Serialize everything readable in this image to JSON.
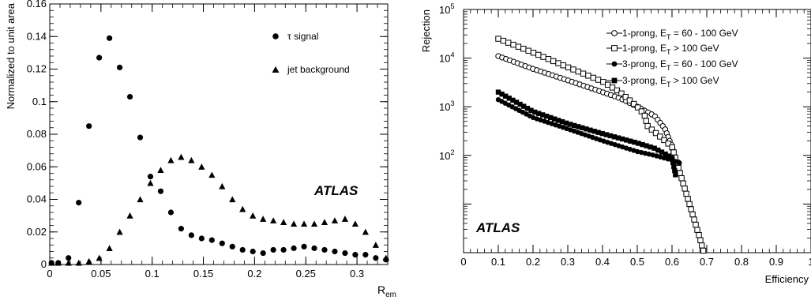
{
  "chart_data": [
    {
      "type": "scatter",
      "xlabel_main": "R",
      "xlabel_sub": "em",
      "ylabel": "Normalized to unit area",
      "xlim": [
        0,
        0.33
      ],
      "ylim": [
        0,
        0.16
      ],
      "xticks": [
        0,
        0.05,
        0.1,
        0.15,
        0.2,
        0.25,
        0.3
      ],
      "xtick_labels": [
        "0",
        "0.05",
        "0.1",
        "0.15",
        "0.2",
        "0.25",
        "0.3"
      ],
      "yticks": [
        0,
        0.02,
        0.04,
        0.06,
        0.08,
        0.1,
        0.12,
        0.14,
        0.16
      ],
      "ytick_labels": [
        "0",
        "0.02",
        "0.04",
        "0.06",
        "0.08",
        "0.1",
        "0.12",
        "0.14",
        "0.16"
      ],
      "watermark": "ATLAS",
      "series": [
        {
          "name": "τ signal",
          "marker": "circle",
          "x": [
            0.0017,
            0.0083,
            0.0183,
            0.0283,
            0.0383,
            0.0483,
            0.0583,
            0.0683,
            0.0783,
            0.0883,
            0.0983,
            0.1083,
            0.1183,
            0.1283,
            0.1383,
            0.1483,
            0.1583,
            0.1683,
            0.1783,
            0.1883,
            0.1983,
            0.2083,
            0.2183,
            0.2283,
            0.2383,
            0.2483,
            0.2583,
            0.2683,
            0.2783,
            0.2883,
            0.2983,
            0.3083,
            0.3183,
            0.3283
          ],
          "y": [
            0.001,
            0.001,
            0.004,
            0.038,
            0.085,
            0.127,
            0.139,
            0.121,
            0.103,
            0.078,
            0.054,
            0.045,
            0.032,
            0.022,
            0.018,
            0.016,
            0.015,
            0.013,
            0.011,
            0.009,
            0.008,
            0.007,
            0.009,
            0.009,
            0.01,
            0.011,
            0.01,
            0.009,
            0.008,
            0.007,
            0.006,
            0.006,
            0.004,
            0.003
          ]
        },
        {
          "name": "jet background",
          "marker": "triangle",
          "x": [
            0.0017,
            0.0083,
            0.0183,
            0.0283,
            0.0383,
            0.0483,
            0.0583,
            0.0683,
            0.0783,
            0.0883,
            0.0983,
            0.1083,
            0.1183,
            0.1283,
            0.1383,
            0.1483,
            0.1583,
            0.1683,
            0.1783,
            0.1883,
            0.1983,
            0.2083,
            0.2183,
            0.2283,
            0.2383,
            0.2483,
            0.2583,
            0.2683,
            0.2783,
            0.2883,
            0.2983,
            0.3083,
            0.3183,
            0.3283
          ],
          "y": [
            0.001,
            0.001,
            0.001,
            0.001,
            0.002,
            0.004,
            0.01,
            0.02,
            0.03,
            0.04,
            0.05,
            0.058,
            0.064,
            0.066,
            0.064,
            0.06,
            0.055,
            0.048,
            0.04,
            0.034,
            0.03,
            0.028,
            0.027,
            0.026,
            0.025,
            0.025,
            0.025,
            0.026,
            0.027,
            0.028,
            0.025,
            0.02,
            0.012,
            0.004
          ]
        }
      ]
    },
    {
      "type": "line",
      "xlabel": "Efficiency",
      "ylabel": "Rejection",
      "yscale": "log",
      "xlim": [
        0,
        1
      ],
      "ylim": [
        1,
        100000
      ],
      "xticks": [
        0,
        0.1,
        0.2,
        0.3,
        0.4,
        0.5,
        0.6,
        0.7,
        0.8,
        0.9,
        1
      ],
      "xtick_labels": [
        "0",
        "0.1",
        "0.2",
        "0.3",
        "0.4",
        "0.5",
        "0.6",
        "0.7",
        "0.8",
        "0.9",
        "1"
      ],
      "ytick_labels": [
        {
          "base": "10",
          "exp": "2",
          "value": 100
        },
        {
          "base": "10",
          "exp": "3",
          "value": 1000
        },
        {
          "base": "10",
          "exp": "4",
          "value": 10000
        },
        {
          "base": "10",
          "exp": "5",
          "value": 100000
        }
      ],
      "watermark": "ATLAS",
      "series": [
        {
          "name": "1-prong, E_T = 60 - 100 GeV",
          "legend_pre": "1-prong, E",
          "legend_sub": "T",
          "legend_post": " = 60 - 100 GeV",
          "marker": "open-circle",
          "x": [
            0.1,
            0.2,
            0.3,
            0.4,
            0.45,
            0.5,
            0.55,
            0.58,
            0.6,
            0.61,
            0.62
          ],
          "y": [
            11000,
            6000,
            3500,
            2000,
            1500,
            1000,
            650,
            350,
            150,
            80,
            70
          ]
        },
        {
          "name": "1-prong, E_T > 100 GeV",
          "legend_pre": "1-prong, E",
          "legend_sub": "T",
          "legend_post": " > 100 GeV",
          "marker": "open-square",
          "x": [
            0.1,
            0.2,
            0.3,
            0.4,
            0.45,
            0.5,
            0.52,
            0.53,
            0.6,
            0.68,
            0.69
          ],
          "y": [
            25000,
            13000,
            6500,
            3300,
            2000,
            1000,
            700,
            400,
            150,
            2,
            1.1
          ]
        },
        {
          "name": "3-prong, E_T = 60 - 100 GeV",
          "legend_pre": "3-prong, E",
          "legend_sub": "T",
          "legend_post": " = 60 - 100 GeV",
          "marker": "filled-circle",
          "x": [
            0.1,
            0.2,
            0.3,
            0.4,
            0.5,
            0.55,
            0.6,
            0.62
          ],
          "y": [
            1400,
            600,
            350,
            200,
            120,
            100,
            80,
            70
          ]
        },
        {
          "name": "3-prong, E_T > 100 GeV",
          "legend_pre": "3-prong, E",
          "legend_sub": "T",
          "legend_post": " > 100 GeV",
          "marker": "filled-square",
          "x": [
            0.1,
            0.2,
            0.3,
            0.4,
            0.5,
            0.55,
            0.6,
            0.61
          ],
          "y": [
            2000,
            800,
            450,
            280,
            180,
            140,
            90,
            40
          ]
        }
      ]
    }
  ]
}
